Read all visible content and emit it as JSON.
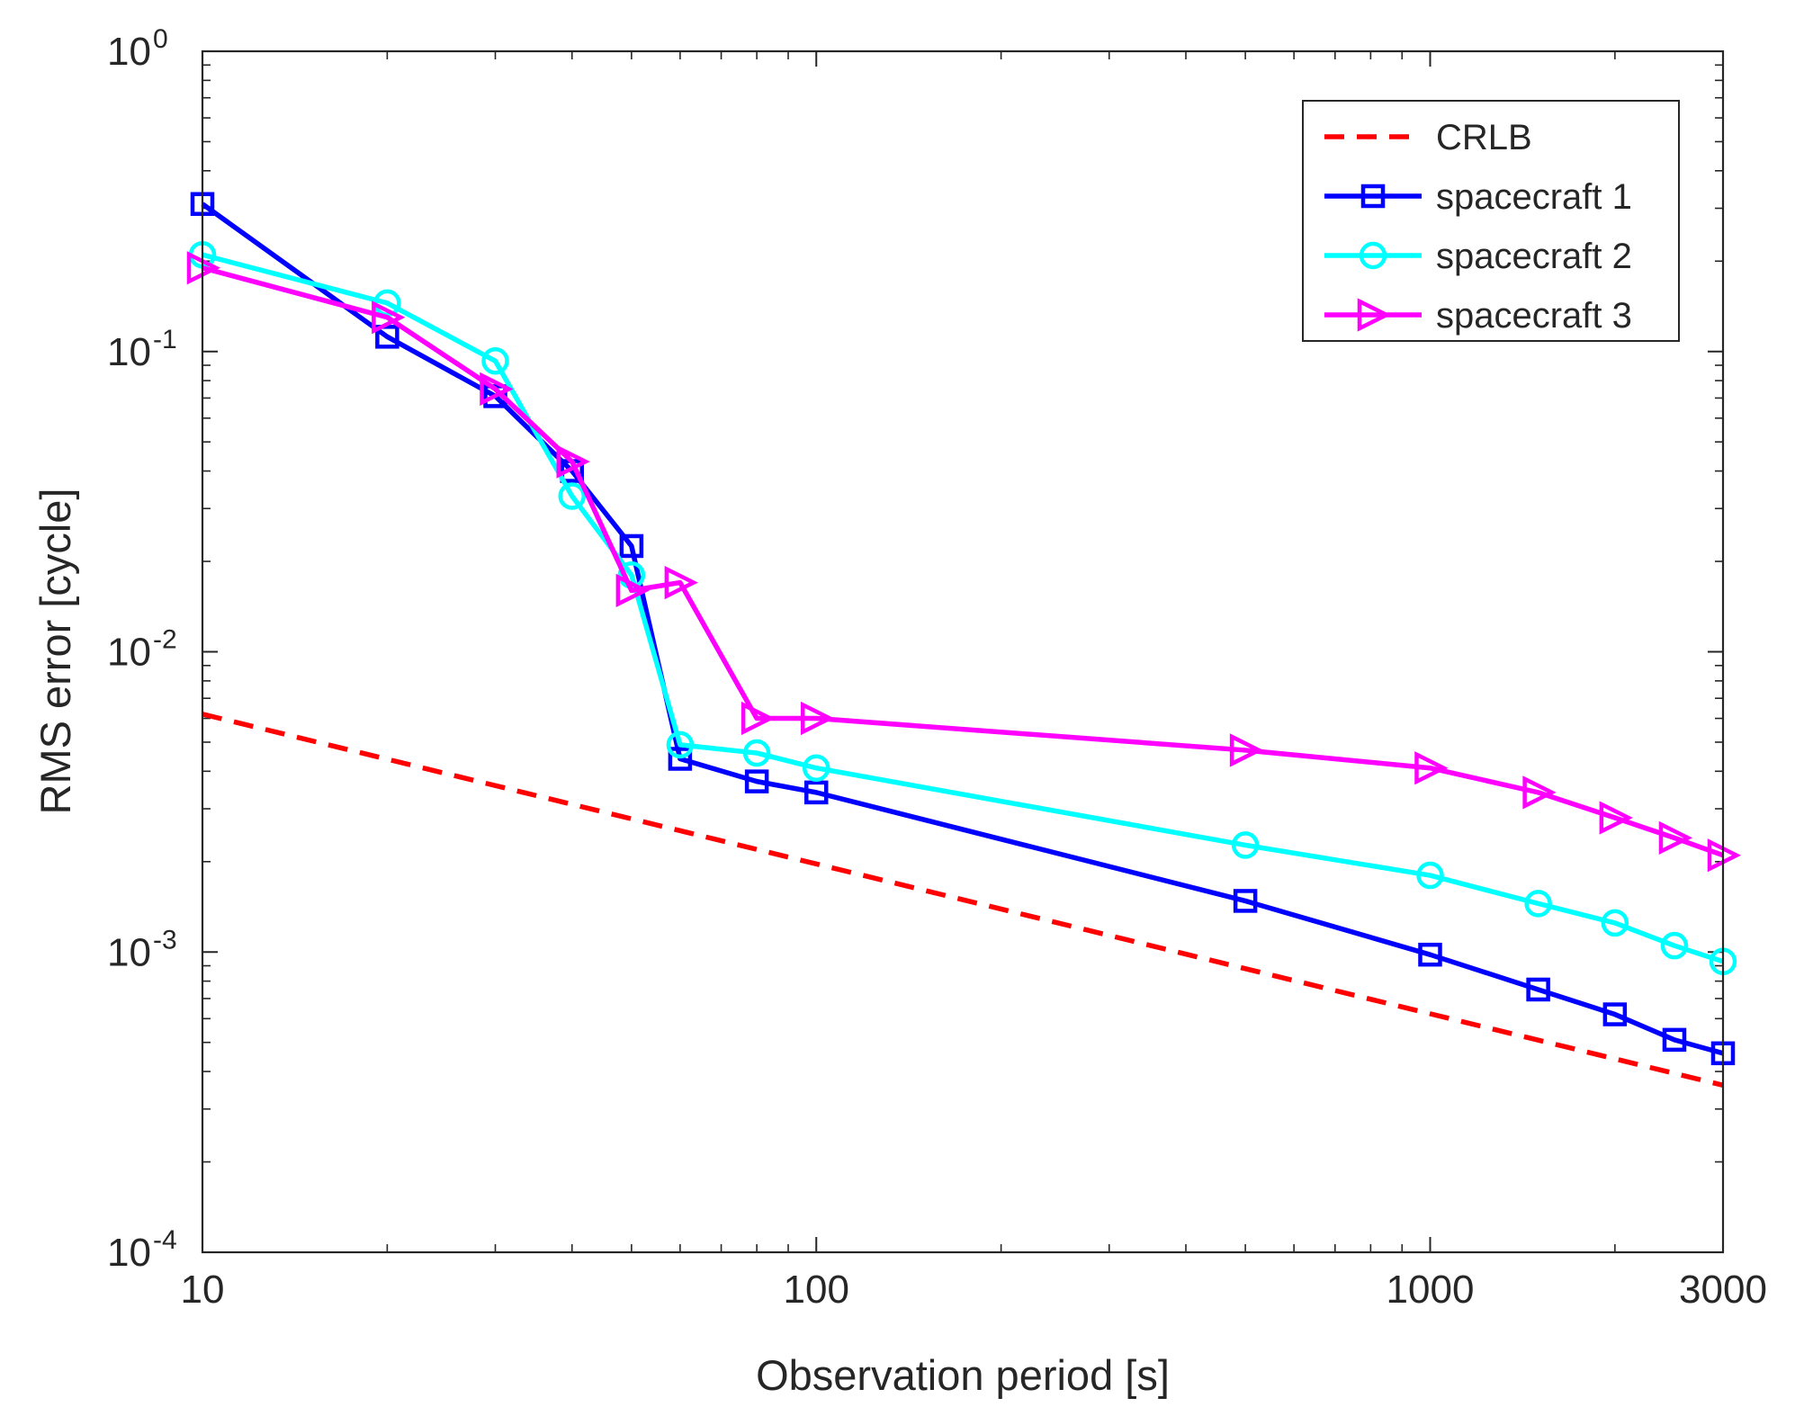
{
  "chart_data": {
    "type": "line",
    "xscale": "log",
    "yscale": "log",
    "xlim": [
      10,
      3000
    ],
    "ylim": [
      0.0001,
      1
    ],
    "xlabel": "Observation period [s]",
    "ylabel": "RMS error [cycle]",
    "x_ticks": [
      {
        "value": 10,
        "label": "10"
      },
      {
        "value": 100,
        "label": "100"
      },
      {
        "value": 1000,
        "label": "1000"
      },
      {
        "value": 3000,
        "label": "3000"
      }
    ],
    "y_ticks": [
      {
        "value": 1,
        "base": "10",
        "exp": "0"
      },
      {
        "value": 0.1,
        "base": "10",
        "exp": "-1"
      },
      {
        "value": 0.01,
        "base": "10",
        "exp": "-2"
      },
      {
        "value": 0.001,
        "base": "10",
        "exp": "-3"
      },
      {
        "value": 0.0001,
        "base": "10",
        "exp": "-4"
      }
    ],
    "grid": false,
    "legend_position": "top-right",
    "series": [
      {
        "name": "CRLB",
        "color": "#ff0000",
        "style": "dashed",
        "marker": "none",
        "x": [
          10,
          3000
        ],
        "y": [
          0.0062,
          0.00036
        ]
      },
      {
        "name": "spacecraft 1",
        "color": "#0000ff",
        "style": "solid",
        "marker": "square",
        "x": [
          10,
          20,
          30,
          40,
          50,
          60,
          80,
          100,
          500,
          1000,
          1500,
          2000,
          2500,
          3000
        ],
        "y": [
          0.31,
          0.112,
          0.071,
          0.04,
          0.0225,
          0.0044,
          0.0037,
          0.0034,
          0.00148,
          0.00098,
          0.00075,
          0.00062,
          0.00051,
          0.00046
        ]
      },
      {
        "name": "spacecraft 2",
        "color": "#00ffff",
        "style": "solid",
        "marker": "circle",
        "x": [
          10,
          20,
          30,
          40,
          50,
          60,
          80,
          100,
          500,
          1000,
          1500,
          2000,
          2500,
          3000
        ],
        "y": [
          0.21,
          0.145,
          0.093,
          0.033,
          0.018,
          0.0049,
          0.0046,
          0.0041,
          0.00227,
          0.0018,
          0.00145,
          0.00125,
          0.00105,
          0.00093
        ]
      },
      {
        "name": "spacecraft 3",
        "color": "#ff00ff",
        "style": "solid",
        "marker": "triangle-right",
        "x": [
          10,
          20,
          30,
          40,
          50,
          60,
          80,
          100,
          500,
          1000,
          1500,
          2000,
          2500,
          3000
        ],
        "y": [
          0.19,
          0.13,
          0.075,
          0.043,
          0.016,
          0.017,
          0.006,
          0.006,
          0.0047,
          0.0041,
          0.0034,
          0.0028,
          0.0024,
          0.0021
        ]
      }
    ]
  }
}
